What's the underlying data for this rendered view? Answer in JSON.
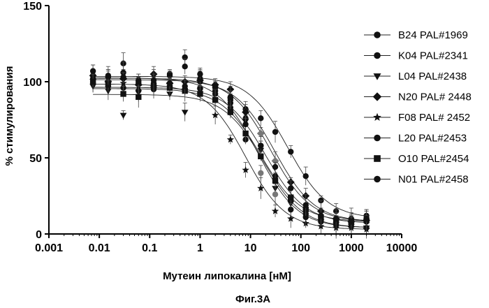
{
  "chart_data": {
    "type": "scatter",
    "xlabel": "Мутеин липокалина [нМ]",
    "ylabel": "% стимулирования",
    "x_scale": "log",
    "xlim": [
      0.001,
      10000
    ],
    "ylim": [
      0,
      150
    ],
    "x_ticks": [
      0.001,
      0.01,
      0.1,
      1,
      10,
      100,
      1000,
      10000
    ],
    "x_tick_labels": [
      "0.001",
      "0.01",
      "0.1",
      "1",
      "10",
      "100",
      "1000",
      "10000"
    ],
    "y_ticks": [
      0,
      50,
      100,
      150
    ],
    "y_tick_labels": [
      "0",
      "50",
      "100",
      "150"
    ],
    "legend_position": "right",
    "x": [
      0.0075,
      0.015,
      0.03,
      0.06,
      0.12,
      0.25,
      0.5,
      1,
      2,
      4,
      8,
      16,
      31,
      63,
      125,
      250,
      500,
      1000,
      2000
    ],
    "series": [
      {
        "name": "B24 PAL#1969",
        "marker": "circle",
        "ic50": 55,
        "values": [
          104,
          103,
          112,
          99,
          98,
          105,
          116,
          100,
          94,
          86,
          82,
          76,
          67,
          54,
          38,
          22,
          15,
          10,
          12
        ]
      },
      {
        "name": "K04 PAL#2341",
        "marker": "circle",
        "ic50": 20,
        "values": [
          99,
          97,
          96,
          94,
          95,
          97,
          95,
          96,
          92,
          83,
          76,
          58,
          38,
          22,
          13,
          9,
          8,
          7,
          8
        ]
      },
      {
        "name": "L04 PAL#2438",
        "marker": "triangle-down",
        "ic50": 18,
        "values": [
          97,
          94,
          78,
          93,
          96,
          92,
          80,
          94,
          95,
          88,
          74,
          55,
          30,
          20,
          12,
          8,
          6,
          5,
          4
        ]
      },
      {
        "name": "N20 PAL# 2448",
        "marker": "diamond",
        "ic50": 30,
        "values": [
          104,
          100,
          102,
          98,
          105,
          99,
          100,
          101,
          98,
          95,
          80,
          66,
          48,
          34,
          25,
          15,
          10,
          8,
          9
        ]
      },
      {
        "name": "F08 PAL# 2452",
        "marker": "star",
        "ic50": 8,
        "values": [
          101,
          100,
          99,
          97,
          96,
          98,
          94,
          93,
          78,
          62,
          42,
          30,
          15,
          10,
          7,
          5,
          4,
          4,
          3
        ]
      },
      {
        "name": "L20 PAL#2453",
        "marker": "circle",
        "ic50": 14,
        "values": [
          102,
          103,
          106,
          101,
          99,
          104,
          110,
          102,
          96,
          88,
          62,
          40,
          26,
          16,
          11,
          8,
          6,
          5,
          4
        ]
      },
      {
        "name": "O10 PAL#2454",
        "marker": "square",
        "ic50": 16,
        "values": [
          100,
          98,
          92,
          90,
          97,
          96,
          94,
          92,
          88,
          80,
          66,
          51,
          35,
          24,
          16,
          11,
          9,
          8,
          9
        ]
      },
      {
        "name": "N01 PAL#2458",
        "marker": "circle",
        "ic50": 25,
        "values": [
          107,
          104,
          103,
          100,
          101,
          99,
          97,
          105,
          97,
          90,
          72,
          58,
          44,
          30,
          19,
          12,
          10,
          8,
          10
        ]
      }
    ]
  },
  "caption": "Фиг.3А"
}
